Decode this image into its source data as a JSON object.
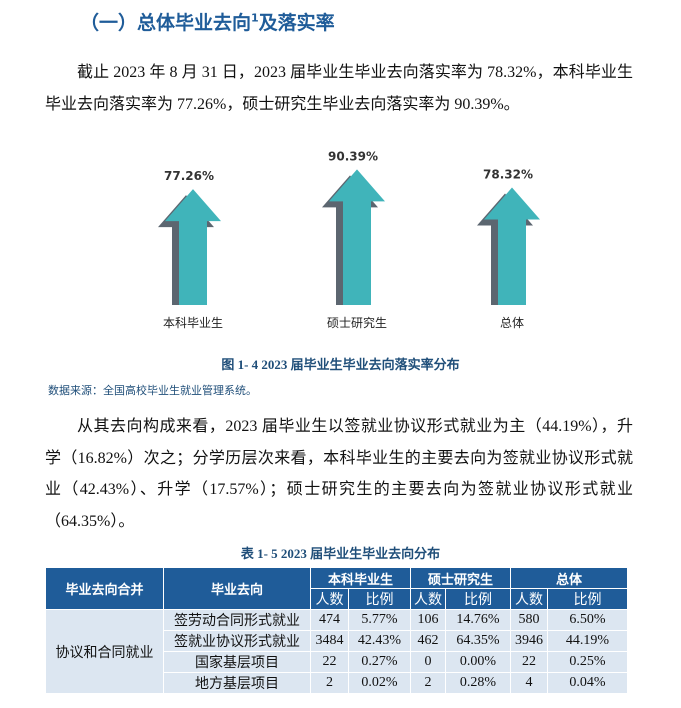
{
  "heading": {
    "text": "（一）总体毕业去向",
    "sup": "1",
    "text_after": "及落实率"
  },
  "paragraph_1": "截止 2023 年 8 月 31 日，2023 届毕业生毕业去向落实率为 78.32%，本科毕业生毕业去向落实率为 77.26%，硕士研究生毕业去向落实率为 90.39%。",
  "chart_data": {
    "type": "arrow",
    "categories": [
      "本科毕业生",
      "硕士研究生",
      "总体"
    ],
    "values": [
      77.26,
      90.39,
      78.32
    ],
    "value_labels": [
      "77.26%",
      "90.39%",
      "78.32%"
    ],
    "color": "#40b4ba",
    "shadow_color": "#5c6670"
  },
  "figure_caption": "图 1- 4  2023 届毕业生毕业去向落实率分布",
  "source": "数据来源：全国高校毕业生就业管理系统。",
  "paragraph_2": "从其去向构成来看，2023 届毕业生以签就业协议形式就业为主（44.19%），升学（16.82%）次之；分学历层次来看，本科毕业生的主要去向为签就业协议形式就业（42.43%）、升学（17.57%）；硕士研究生的主要去向为签就业协议形式就业（64.35%）。",
  "table_caption": "表 1- 5  2023 届毕业生毕业去向分布",
  "table": {
    "header": [
      "毕业去向合并",
      "毕业去向",
      "本科毕业生",
      "硕士研究生",
      "总体"
    ],
    "subheader": [
      "人数",
      "比例",
      "人数",
      "比例",
      "人数",
      "比例"
    ],
    "group": "协议和合同就业",
    "rows": [
      [
        "签劳动合同形式就业",
        "474",
        "5.77%",
        "106",
        "14.76%",
        "580",
        "6.50%"
      ],
      [
        "签就业协议形式就业",
        "3484",
        "42.43%",
        "462",
        "64.35%",
        "3946",
        "44.19%"
      ],
      [
        "国家基层项目",
        "22",
        "0.27%",
        "0",
        "0.00%",
        "22",
        "0.25%"
      ],
      [
        "地方基层项目",
        "2",
        "0.02%",
        "2",
        "0.28%",
        "4",
        "0.04%"
      ]
    ]
  }
}
